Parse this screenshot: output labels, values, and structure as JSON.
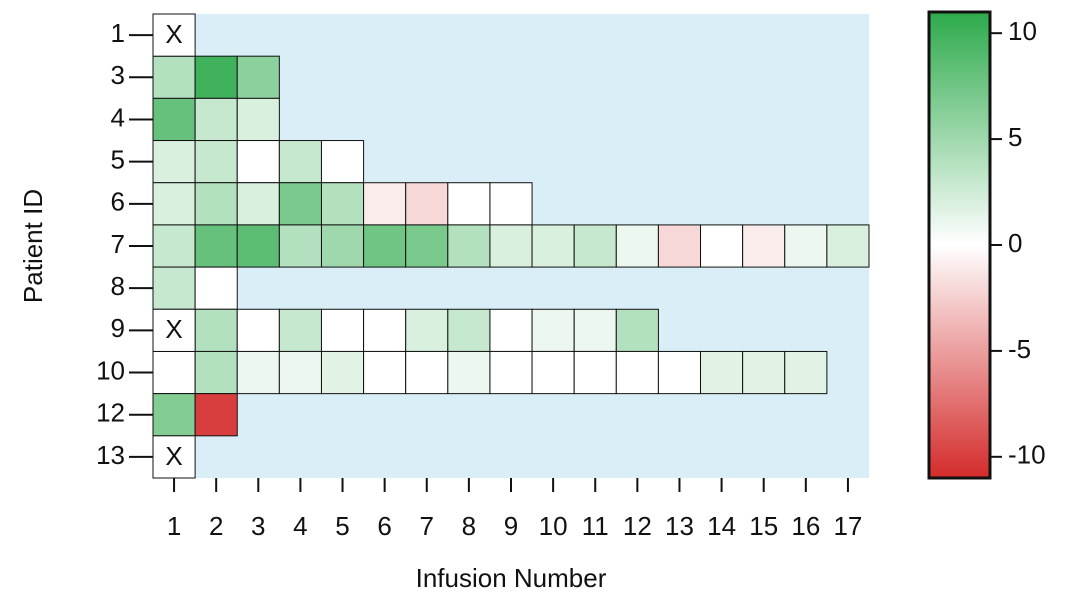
{
  "chart_data": {
    "type": "heatmap",
    "x_label": "Infusion Number",
    "y_label": "Patient ID",
    "x": [
      1,
      2,
      3,
      4,
      5,
      6,
      7,
      8,
      9,
      10,
      11,
      12,
      13,
      14,
      15,
      16,
      17
    ],
    "y": [
      1,
      3,
      4,
      5,
      6,
      7,
      8,
      9,
      10,
      12,
      13
    ],
    "values": [
      [
        null,
        null,
        null,
        null,
        null,
        null,
        null,
        null,
        null,
        null,
        null,
        null,
        null,
        null,
        null,
        null,
        null
      ],
      [
        4,
        10,
        6,
        null,
        null,
        null,
        null,
        null,
        null,
        null,
        null,
        null,
        null,
        null,
        null,
        null,
        null
      ],
      [
        8,
        3,
        2,
        null,
        null,
        null,
        null,
        null,
        null,
        null,
        null,
        null,
        null,
        null,
        null,
        null,
        null
      ],
      [
        2,
        3,
        0,
        3,
        0,
        null,
        null,
        null,
        null,
        null,
        null,
        null,
        null,
        null,
        null,
        null,
        null
      ],
      [
        2,
        4,
        2,
        7,
        4,
        -1,
        -2,
        0,
        0,
        null,
        null,
        null,
        null,
        null,
        null,
        null,
        null
      ],
      [
        3,
        8,
        8.5,
        4,
        5,
        7.5,
        7,
        4,
        2,
        2,
        3,
        1,
        -2,
        0,
        -1,
        1,
        2
      ],
      [
        3,
        0,
        null,
        null,
        null,
        null,
        null,
        null,
        null,
        null,
        null,
        null,
        null,
        null,
        null,
        null,
        null
      ],
      [
        null,
        4,
        0,
        3,
        0,
        0,
        2,
        3,
        0,
        1,
        1,
        4,
        null,
        null,
        null,
        null,
        null
      ],
      [
        0,
        4,
        1,
        1,
        1.5,
        0,
        0,
        1,
        0,
        0,
        0,
        0,
        0,
        1.5,
        1.5,
        1.5,
        null
      ],
      [
        6.5,
        -10,
        null,
        null,
        null,
        null,
        null,
        null,
        null,
        null,
        null,
        null,
        null,
        null,
        null,
        null,
        null
      ],
      [
        null,
        null,
        null,
        null,
        null,
        null,
        null,
        null,
        null,
        null,
        null,
        null,
        null,
        null,
        null,
        null,
        null
      ]
    ],
    "annotations": [
      {
        "x": 1,
        "y": 1,
        "text": "X"
      },
      {
        "x": 1,
        "y": 9,
        "text": "X"
      },
      {
        "x": 1,
        "y": 13,
        "text": "X"
      }
    ],
    "clim": [
      -11,
      11
    ],
    "cticks": [
      10,
      5,
      0,
      -5,
      -10
    ],
    "colors": {
      "low": "#d42b2b",
      "mid": "#ffffff",
      "high": "#2daa4b"
    },
    "background": "#d9eef7"
  }
}
